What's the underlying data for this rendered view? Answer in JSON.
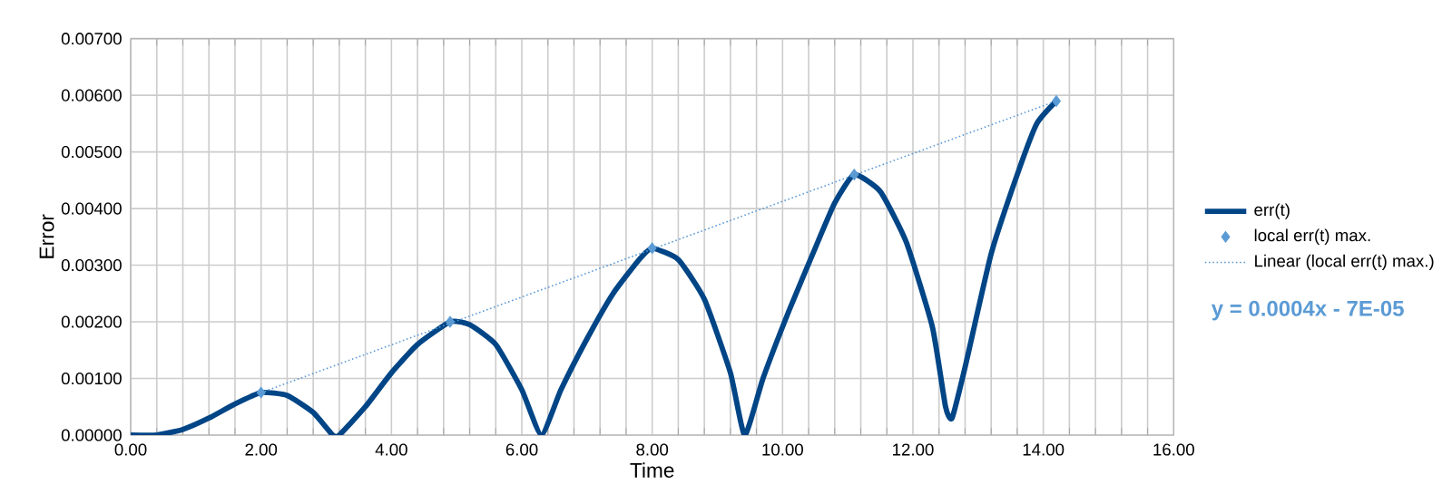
{
  "chart_data": {
    "type": "line",
    "xlabel": "Time",
    "ylabel": "Error",
    "xlim": [
      0,
      16
    ],
    "ylim": [
      0,
      0.007
    ],
    "xticks": [
      {
        "value": 0,
        "label": "0.00"
      },
      {
        "value": 2,
        "label": "2.00"
      },
      {
        "value": 4,
        "label": "4.00"
      },
      {
        "value": 6,
        "label": "6.00"
      },
      {
        "value": 8,
        "label": "8.00"
      },
      {
        "value": 10,
        "label": "10.00"
      },
      {
        "value": 12,
        "label": "12.00"
      },
      {
        "value": 14,
        "label": "14.00"
      },
      {
        "value": 16,
        "label": "16.00"
      }
    ],
    "yticks": [
      {
        "value": 0,
        "label": "0.00000"
      },
      {
        "value": 0.001,
        "label": "0.00100"
      },
      {
        "value": 0.002,
        "label": "0.00200"
      },
      {
        "value": 0.003,
        "label": "0.00300"
      },
      {
        "value": 0.004,
        "label": "0.00400"
      },
      {
        "value": 0.005,
        "label": "0.00500"
      },
      {
        "value": 0.006,
        "label": "0.00600"
      },
      {
        "value": 0.007,
        "label": "0.00700"
      }
    ],
    "grid": true,
    "legend": "right",
    "series": [
      {
        "name": "err(t)",
        "type": "line",
        "color": "#004586",
        "marker": "none",
        "line_style": "solid",
        "x": [
          0,
          0.4,
          0.8,
          1.2,
          1.6,
          2.0,
          2.4,
          2.8,
          3.1,
          3.2,
          3.6,
          4.0,
          4.4,
          4.9,
          5.2,
          5.6,
          6.0,
          6.3,
          6.6,
          7.0,
          7.4,
          7.8,
          8.0,
          8.4,
          8.8,
          9.2,
          9.42,
          9.7,
          10.1,
          10.5,
          10.8,
          11.1,
          11.5,
          11.9,
          12.3,
          12.5,
          12.6,
          12.8,
          13.2,
          13.6,
          13.9,
          14.2
        ],
        "values": [
          0,
          0,
          0.0001,
          0.0003,
          0.00055,
          0.00075,
          0.0007,
          0.0004,
          0,
          0,
          0.0005,
          0.0011,
          0.0016,
          0.002,
          0.00195,
          0.0016,
          0.0008,
          0,
          0.0008,
          0.0017,
          0.0025,
          0.0031,
          0.0033,
          0.0031,
          0.0024,
          0.0011,
          0,
          0.001,
          0.0022,
          0.0033,
          0.0041,
          0.0046,
          0.0043,
          0.0034,
          0.0019,
          0.0005,
          0.0003,
          0.0012,
          0.0032,
          0.0046,
          0.0055,
          0.0059
        ]
      },
      {
        "name": "local err(t) max.",
        "type": "scatter",
        "color": "#5b9bd5",
        "marker": "diamond",
        "x": [
          2.0,
          4.9,
          8.0,
          11.1,
          14.2
        ],
        "values": [
          0.00075,
          0.002,
          0.0033,
          0.0046,
          0.0059
        ]
      },
      {
        "name": "Linear (local err(t) max.)",
        "type": "line",
        "color": "#5b9bd5",
        "marker": "none",
        "line_style": "dotted",
        "x": [
          2.0,
          14.2
        ],
        "values": [
          0.00075,
          0.0059
        ]
      }
    ],
    "annotations": [
      "y = 0.0004x - 7E-05"
    ]
  }
}
